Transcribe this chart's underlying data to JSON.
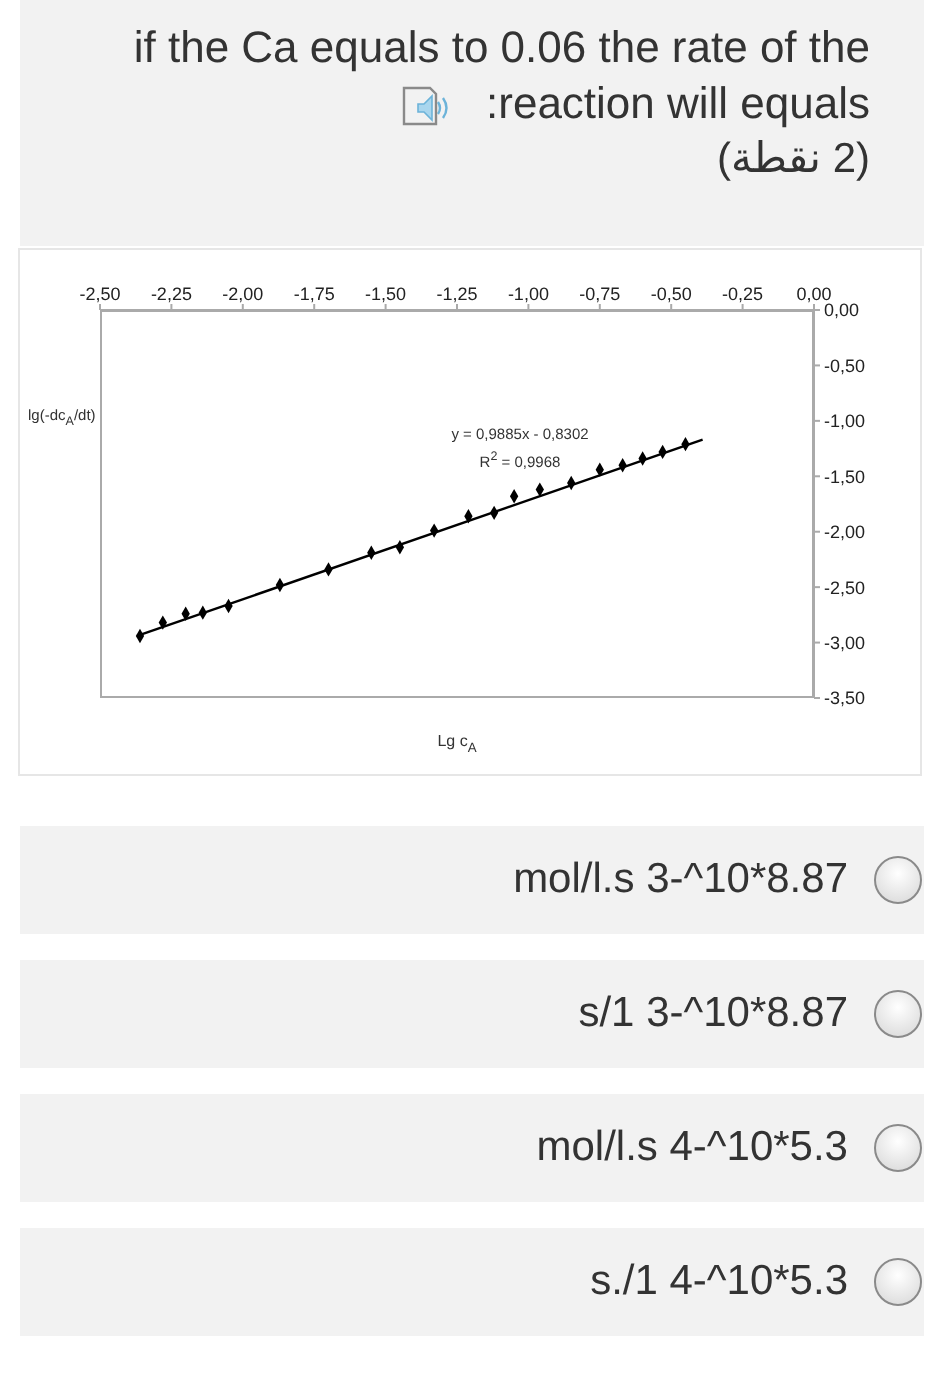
{
  "chart_data": {
    "type": "scatter",
    "title": "if the Ca equals to 0.06 the rate of the :reaction will equals",
    "subtitle": "(2 نقطة)",
    "xlabel": "Lg c$_{A}$",
    "ylabel": "lg(-dc$_{A}$/dt)",
    "xlim": [
      -2.5,
      0
    ],
    "xticks": [
      {
        "value": -2.5,
        "label": "-2,50"
      },
      {
        "value": -2.25,
        "label": "-2,25"
      },
      {
        "value": -2,
        "label": "-2,00"
      },
      {
        "value": -1.75,
        "label": "-1,75"
      },
      {
        "value": -1.5,
        "label": "-1,50"
      },
      {
        "value": -1.25,
        "label": "-1,25"
      },
      {
        "value": -1,
        "label": "-1,00"
      },
      {
        "value": -0.75,
        "label": "-0,75"
      },
      {
        "value": -0.5,
        "label": "-0,50"
      },
      {
        "value": -0.25,
        "label": "-0,25"
      },
      {
        "value": 0,
        "label": "0,00"
      }
    ],
    "ylim": [
      -3.5,
      0
    ],
    "yticks": [
      {
        "value": 0,
        "label": "0,00"
      },
      {
        "value": -0.5,
        "label": "-0,50"
      },
      {
        "value": -1,
        "label": "-1,00"
      },
      {
        "value": -1.5,
        "label": "-1,50"
      },
      {
        "value": -2,
        "label": "-2,00"
      },
      {
        "value": -2.5,
        "label": "-2,50"
      },
      {
        "value": -3,
        "label": "-3,00"
      },
      {
        "value": -3.5,
        "label": "-3,50"
      }
    ],
    "marker": "diamond",
    "series": [
      {
        "type": "scatter",
        "color": "#000000",
        "x": [
          -2.36,
          -2.28,
          -2.2,
          -2.14,
          -2.05,
          -1.87,
          -1.7,
          -1.55,
          -1.45,
          -1.33,
          -1.21,
          -1.12,
          -1.05,
          -0.96,
          -0.85,
          -0.75,
          -0.67,
          -0.6,
          -0.53,
          -0.45
        ],
        "values": [
          -2.94,
          -2.82,
          -2.74,
          -2.73,
          -2.67,
          -2.48,
          -2.34,
          -2.19,
          -2.14,
          -1.99,
          -1.86,
          -1.83,
          -1.68,
          -1.62,
          -1.56,
          -1.44,
          -1.4,
          -1.34,
          -1.28,
          -1.21
        ]
      },
      {
        "type": "line",
        "color": "#000000",
        "marker": "none",
        "x": [
          -2.37,
          -0.39
        ],
        "values": [
          -2.94,
          -1.17
        ]
      }
    ],
    "annotations": [
      "y = 0,9885x - 0,8302",
      "R$^{2}$ = 0,9968",
      "mol/l.s 3-^10*8.87",
      "s/1 3-^10*8.87",
      "mol/l.s 4-^10*5.3",
      "s./1 4-^10*5.3"
    ]
  }
}
